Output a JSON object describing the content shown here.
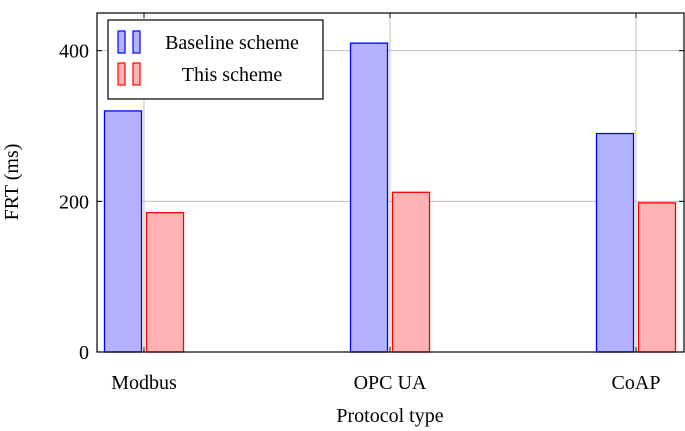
{
  "chart_data": {
    "type": "bar",
    "categories": [
      "Modbus",
      "OPC UA",
      "CoAP"
    ],
    "series": [
      {
        "name": "Baseline scheme",
        "values": [
          320,
          410,
          290
        ],
        "fill": "#b3b3ff",
        "stroke": "#0000ff"
      },
      {
        "name": "This scheme",
        "values": [
          185,
          212,
          198
        ],
        "fill": "#ffb3b3",
        "stroke": "#ff0000"
      }
    ],
    "xlabel": "Protocol type",
    "ylabel": "FRT (ms)",
    "ylim": [
      0,
      450
    ],
    "yticks": [
      0,
      200,
      400
    ],
    "grid": true,
    "legend_position": "top-left"
  }
}
